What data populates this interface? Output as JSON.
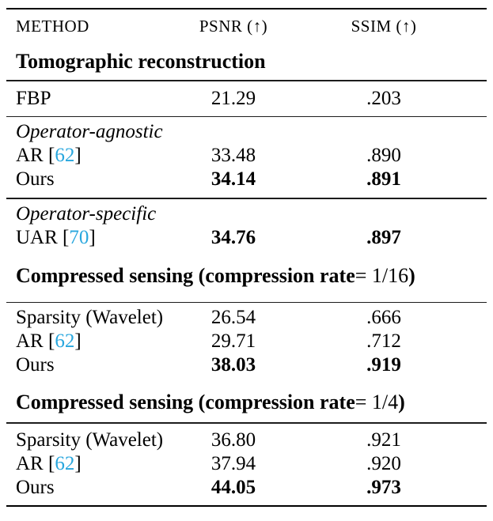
{
  "colors": {
    "citation_link": "#29A7DE",
    "text": "#000000",
    "rule": "#000000",
    "background": "#FFFFFF"
  },
  "header": {
    "method": "METHOD",
    "psnr": "PSNR (↑)",
    "ssim": "SSIM (↑)"
  },
  "tomo": {
    "title": "Tomographic reconstruction",
    "fbp": {
      "label": "FBP",
      "psnr": "21.29",
      "ssim": ".203"
    },
    "agnostic_label": "Operator-agnostic",
    "ar": {
      "pre": "AR [",
      "cite": "62",
      "post": "]",
      "psnr": "33.48",
      "ssim": ".890"
    },
    "ours": {
      "label": "Ours",
      "psnr": "34.14",
      "ssim": ".891"
    },
    "specific_label": "Operator-specific",
    "uar": {
      "pre": "UAR [",
      "cite": "70",
      "post": "]",
      "psnr": "34.76",
      "ssim": ".897"
    }
  },
  "cs16": {
    "title_bold": "Compressed sensing (compression rate",
    "title_math": " = 1/16",
    "title_close": ")",
    "sparsity": {
      "label": "Sparsity (Wavelet)",
      "psnr": "26.54",
      "ssim": ".666"
    },
    "ar": {
      "pre": "AR [",
      "cite": "62",
      "post": "]",
      "psnr": "29.71",
      "ssim": ".712"
    },
    "ours": {
      "label": "Ours",
      "psnr": "38.03",
      "ssim": ".919"
    }
  },
  "cs4": {
    "title_bold": "Compressed sensing (compression rate",
    "title_math": " = 1/4",
    "title_close": ")",
    "sparsity": {
      "label": "Sparsity (Wavelet)",
      "psnr": "36.80",
      "ssim": ".921"
    },
    "ar": {
      "pre": "AR [",
      "cite": "62",
      "post": "]",
      "psnr": "37.94",
      "ssim": ".920"
    },
    "ours": {
      "label": "Ours",
      "psnr": "44.05",
      "ssim": ".973"
    }
  }
}
